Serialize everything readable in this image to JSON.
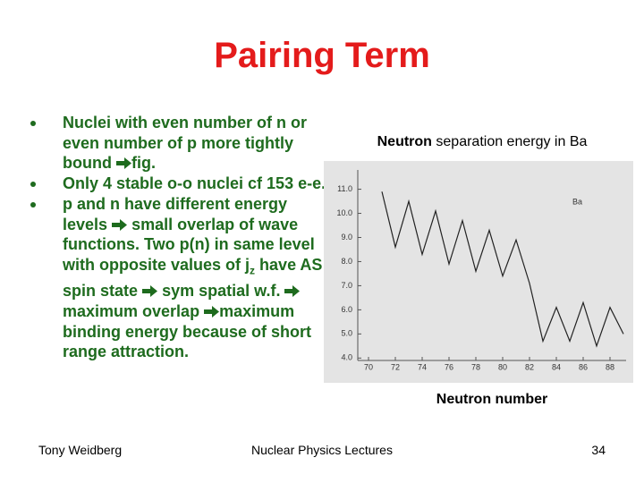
{
  "title": "Pairing Term",
  "bullets": [
    [
      "Nuclei with even number of n or even number of p more tightly bound",
      "fig."
    ],
    [
      "Only 4 stable o-o nuclei cf 153  e-e."
    ],
    [
      "p and n have different energy levels",
      "small overlap of wave functions. Two p(n) in same level with opposite values of j",
      "z",
      "have AS spin state",
      "sym spatial w.f.",
      "maximum overlap",
      "maximum binding energy because of short range attraction."
    ]
  ],
  "chart_data": {
    "type": "line",
    "title": [
      "Neutron",
      "separation energy in Ba"
    ],
    "x_label": "Neutron number",
    "annotation": "Ba",
    "x": [
      71,
      72,
      73,
      74,
      75,
      76,
      77,
      78,
      79,
      80,
      81,
      82,
      83,
      84,
      85,
      86,
      87,
      88,
      89
    ],
    "series": [
      {
        "color": "#222222",
        "values": [
          10.9,
          8.6,
          10.5,
          8.3,
          10.1,
          7.9,
          9.7,
          7.6,
          9.3,
          7.4,
          8.9,
          7.1,
          4.7,
          6.1,
          4.7,
          6.3,
          4.5,
          6.1,
          5.0
        ]
      }
    ],
    "xlim": [
      69.2,
      89.2
    ],
    "ylim": [
      3.9,
      11.8
    ],
    "xticks": [
      70,
      72,
      74,
      76,
      78,
      80,
      82,
      84,
      86,
      88
    ],
    "yticks": [
      {
        "value": 4,
        "label": "4.0"
      },
      {
        "value": 5,
        "label": "5.0"
      },
      {
        "value": 6,
        "label": "6.0"
      },
      {
        "value": 7,
        "label": "7.0"
      },
      {
        "value": 8,
        "label": "8.0"
      },
      {
        "value": 9,
        "label": "9.0"
      },
      {
        "value": 10,
        "label": "10.0"
      },
      {
        "value": 11,
        "label": "11.0"
      }
    ]
  },
  "footer": {
    "left": "Tony Weidberg",
    "center": "Nuclear Physics Lectures",
    "page": "34"
  }
}
